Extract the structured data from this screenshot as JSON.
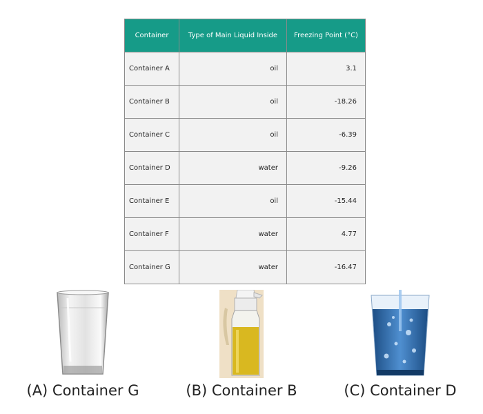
{
  "table": {
    "headers": [
      "Container",
      "Type of Main Liquid Inside",
      "Freezing Point (°C)"
    ],
    "rows": [
      [
        "Container A",
        "oil",
        "3.1"
      ],
      [
        "Container B",
        "oil",
        "-18.26"
      ],
      [
        "Container C",
        "oil",
        "-6.39"
      ],
      [
        "Container D",
        "water",
        "-9.26"
      ],
      [
        "Container E",
        "oil",
        "-15.44"
      ],
      [
        "Container F",
        "water",
        "4.77"
      ],
      [
        "Container G",
        "water",
        "-16.47"
      ]
    ]
  },
  "options": [
    {
      "caption": "(A) Container G",
      "icon": "empty-glass-icon"
    },
    {
      "caption": "(B) Container B",
      "icon": "oil-bottle-icon"
    },
    {
      "caption": "(C) Container D",
      "icon": "water-glass-icon"
    }
  ],
  "colors": {
    "header": "#169b88",
    "cell": "#f2f2f2",
    "oil": "#d9b820",
    "water": "#2f6fb0"
  }
}
